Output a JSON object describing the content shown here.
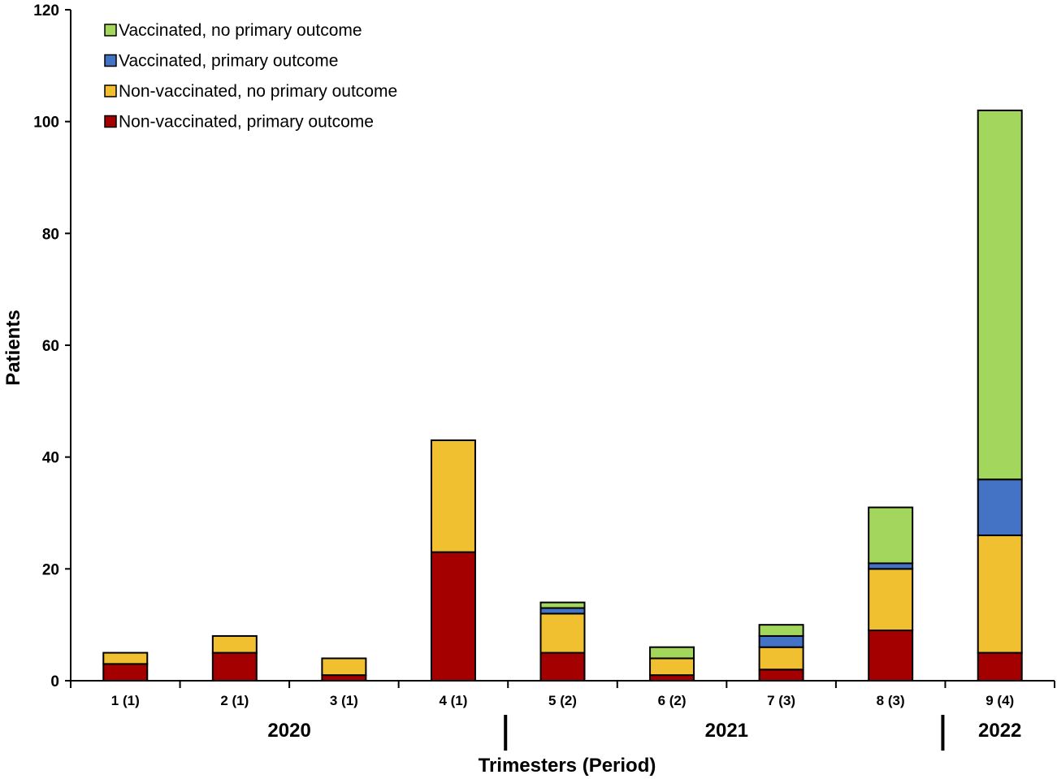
{
  "chart_data": {
    "type": "bar",
    "stacked": true,
    "title": "",
    "xlabel": "Trimesters (Period)",
    "ylabel": "Patients",
    "ylim": [
      0,
      120
    ],
    "yticks": [
      0,
      20,
      40,
      60,
      80,
      100,
      120
    ],
    "categories": [
      "1 (1)",
      "2 (1)",
      "3 (1)",
      "4 (1)",
      "5 (2)",
      "6 (2)",
      "7 (3)",
      "8 (3)",
      "9 (4)"
    ],
    "years": [
      {
        "label": "2020",
        "from": 0,
        "to": 3
      },
      {
        "label": "2021",
        "from": 4,
        "to": 7
      },
      {
        "label": "2022",
        "from": 8,
        "to": 8
      }
    ],
    "legend_position": "top-left",
    "series": [
      {
        "name": "Non-vaccinated, primary outcome",
        "color": "#a50000",
        "values": [
          3,
          5,
          1,
          23,
          5,
          1,
          2,
          9,
          5
        ]
      },
      {
        "name": "Non-vaccinated, no primary outcome",
        "color": "#f0c030",
        "values": [
          2,
          3,
          3,
          20,
          7,
          3,
          4,
          11,
          21
        ]
      },
      {
        "name": "Vaccinated, primary outcome",
        "color": "#4472c4",
        "values": [
          0,
          0,
          0,
          0,
          1,
          0,
          2,
          1,
          10
        ]
      },
      {
        "name": "Vaccinated, no primary outcome",
        "color": "#a3d65c",
        "values": [
          0,
          0,
          0,
          0,
          1,
          2,
          2,
          10,
          66
        ]
      }
    ]
  }
}
